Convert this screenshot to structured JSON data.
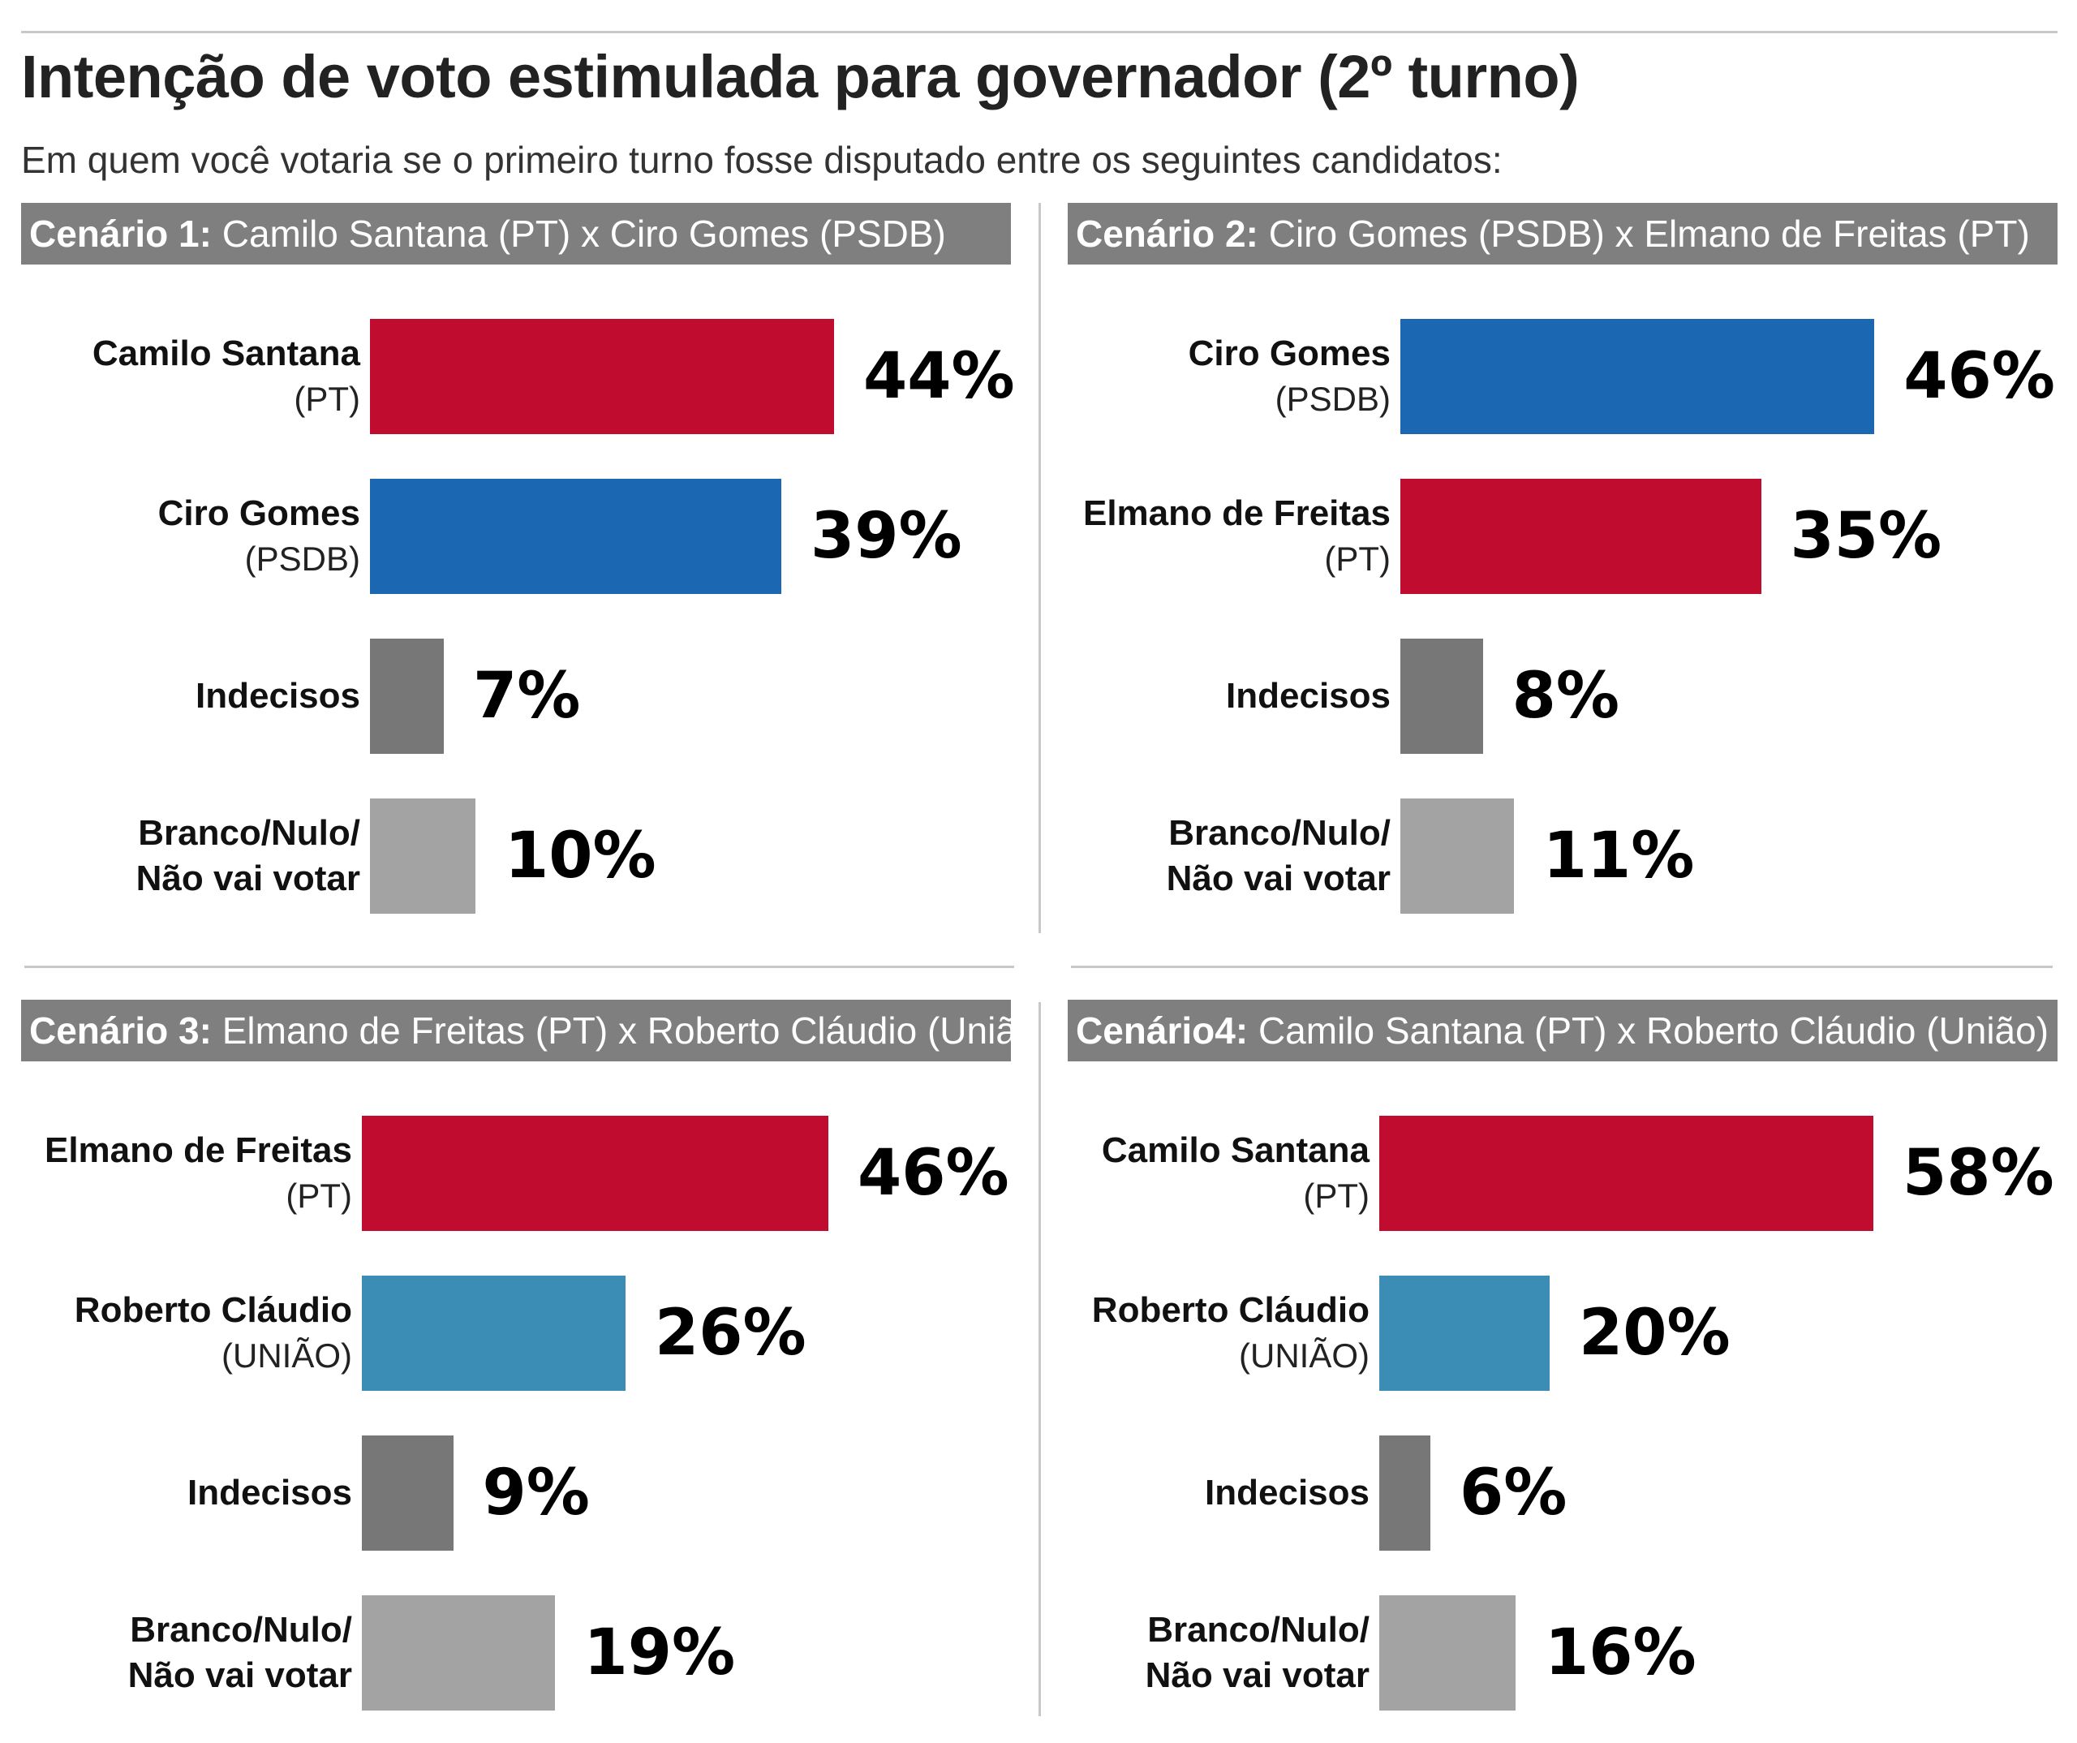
{
  "title": "Intenção de voto estimulada para governador (2º turno)",
  "subtitle": "Em quem você votaria se o primeiro turno fosse disputado entre os seguintes candidatos:",
  "colors": {
    "pt": "#c00d2f",
    "psdb": "#1c67b1",
    "uniao": "#3b8db5",
    "indecisos": "#777777",
    "branco": "#a3a3a3",
    "header": "#7f7f7f"
  },
  "chart_data": [
    {
      "type": "bar",
      "orientation": "horizontal",
      "header_label": "Cenário 1:",
      "header_text": "Camilo Santana (PT) x Ciro Gomes (PSDB)",
      "unit": "%",
      "bars": [
        {
          "name": "Camilo Santana",
          "party": "(PT)",
          "value": 44,
          "label": "44%",
          "color": "#c00d2f"
        },
        {
          "name": "Ciro Gomes",
          "party": "(PSDB)",
          "value": 39,
          "label": "39%",
          "color": "#1c67b1"
        },
        {
          "name": "Indecisos",
          "party": "",
          "value": 7,
          "label": "7%",
          "color": "#777777"
        },
        {
          "name": "Branco/Nulo/",
          "party": "Não vai votar",
          "party_bold": true,
          "value": 10,
          "label": "10%",
          "color": "#a3a3a3"
        }
      ]
    },
    {
      "type": "bar",
      "orientation": "horizontal",
      "header_label": "Cenário 2:",
      "header_text": "Ciro Gomes (PSDB) x Elmano de Freitas (PT)",
      "unit": "%",
      "bars": [
        {
          "name": "Ciro Gomes",
          "party": "(PSDB)",
          "value": 46,
          "label": "46%",
          "color": "#1c67b1"
        },
        {
          "name": "Elmano de Freitas",
          "party": "(PT)",
          "value": 35,
          "label": "35%",
          "color": "#c00d2f"
        },
        {
          "name": "Indecisos",
          "party": "",
          "value": 8,
          "label": "8%",
          "color": "#777777"
        },
        {
          "name": "Branco/Nulo/",
          "party": "Não vai votar",
          "party_bold": true,
          "value": 11,
          "label": "11%",
          "color": "#a3a3a3"
        }
      ]
    },
    {
      "type": "bar",
      "orientation": "horizontal",
      "header_label": "Cenário 3:",
      "header_text": "Elmano de Freitas (PT) x Roberto Cláudio (União)",
      "unit": "%",
      "bars": [
        {
          "name": "Elmano de Freitas",
          "party": "(PT)",
          "value": 46,
          "label": "46%",
          "color": "#c00d2f"
        },
        {
          "name": "Roberto Cláudio",
          "party": "(UNIÃO)",
          "value": 26,
          "label": "26%",
          "color": "#3b8db5"
        },
        {
          "name": "Indecisos",
          "party": "",
          "value": 9,
          "label": "9%",
          "color": "#777777"
        },
        {
          "name": "Branco/Nulo/",
          "party": "Não vai votar",
          "party_bold": true,
          "value": 19,
          "label": "19%",
          "color": "#a3a3a3"
        }
      ]
    },
    {
      "type": "bar",
      "orientation": "horizontal",
      "header_label": "Cenário4:",
      "header_text": "Camilo Santana (PT) x Roberto Cláudio (União)",
      "unit": "%",
      "bars": [
        {
          "name": "Camilo Santana",
          "party": "(PT)",
          "value": 58,
          "label": "58%",
          "color": "#c00d2f"
        },
        {
          "name": "Roberto Cláudio",
          "party": "(UNIÃO)",
          "value": 20,
          "label": "20%",
          "color": "#3b8db5"
        },
        {
          "name": "Indecisos",
          "party": "",
          "value": 6,
          "label": "6%",
          "color": "#777777"
        },
        {
          "name": "Branco/Nulo/",
          "party": "Não vai votar",
          "party_bold": true,
          "value": 16,
          "label": "16%",
          "color": "#a3a3a3"
        }
      ]
    }
  ]
}
